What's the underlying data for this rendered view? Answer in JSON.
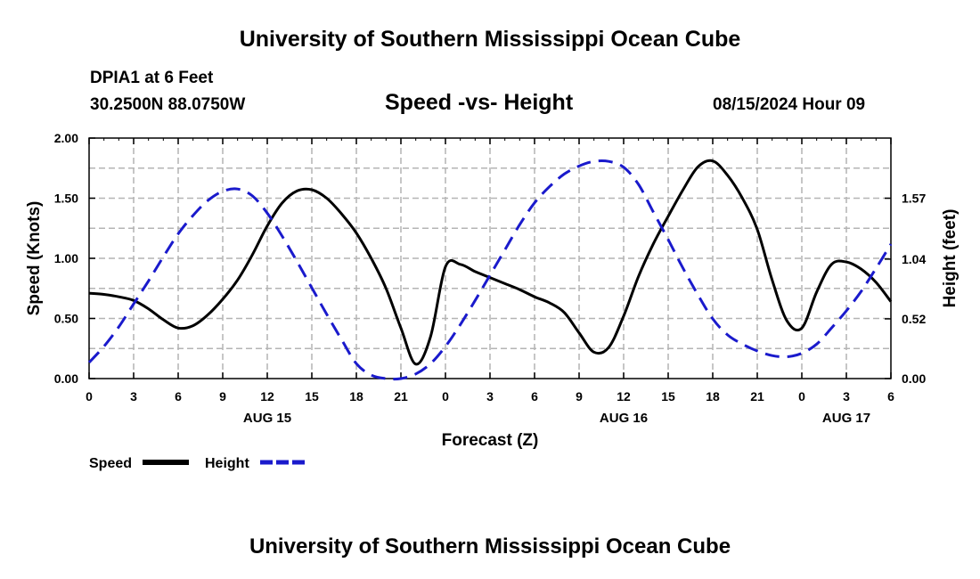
{
  "header": {
    "title": "University of Southern Mississippi Ocean Cube",
    "station": "DPIA1 at 6 Feet",
    "coords": "30.2500N  88.0750W",
    "subtitle": "Speed -vs- Height",
    "datetime": "08/15/2024 Hour 09",
    "footer_title": "University of Southern Mississippi Ocean Cube"
  },
  "colors": {
    "speed": "#000000",
    "height": "#1a1acc",
    "grid": "#b4b4b4"
  },
  "chart_data": {
    "type": "line",
    "title": "Speed -vs- Height",
    "xlabel": "Forecast (Z)",
    "ylabel": "Speed (Knots)",
    "y2label": "Height (feet)",
    "x_hours_range": [
      0,
      54
    ],
    "x_tick_labels": [
      "0",
      "3",
      "6",
      "9",
      "12",
      "15",
      "18",
      "21",
      "0",
      "3",
      "6",
      "9",
      "12",
      "15",
      "18",
      "21",
      "0",
      "3",
      "6"
    ],
    "x_day_labels": [
      {
        "hour": 12,
        "label": "AUG 15"
      },
      {
        "hour": 36,
        "label": "AUG 16"
      },
      {
        "hour": 51,
        "label": "AUG 17"
      }
    ],
    "ylim": [
      0,
      2
    ],
    "y_ticks": [
      "0.00",
      "0.50",
      "1.00",
      "1.50",
      "2.00"
    ],
    "y2lim": [
      0,
      2.0935
    ],
    "y2_ticks": [
      {
        "value": 0.0,
        "label": "0.00"
      },
      {
        "value": 0.52,
        "label": "0.52"
      },
      {
        "value": 1.04,
        "label": "1.04"
      },
      {
        "value": 1.57,
        "label": "1.57"
      }
    ],
    "grid": true,
    "legend_position": "bottom-left",
    "series": [
      {
        "name": "Speed",
        "axis": "left",
        "style": "solid",
        "x": [
          0,
          1,
          2,
          3,
          4,
          5,
          6,
          7,
          8,
          9,
          10,
          11,
          12,
          13,
          14,
          15,
          16,
          17,
          18,
          19,
          20,
          21,
          22,
          23,
          24,
          25,
          26,
          27,
          28,
          29,
          30,
          31,
          32,
          33,
          34,
          35,
          36,
          37,
          38,
          39,
          40,
          41,
          42,
          43,
          44,
          45,
          46,
          47,
          48,
          49,
          50,
          51,
          52,
          53,
          54
        ],
        "values": [
          0.71,
          0.7,
          0.68,
          0.65,
          0.58,
          0.49,
          0.42,
          0.44,
          0.53,
          0.66,
          0.82,
          1.03,
          1.27,
          1.46,
          1.56,
          1.57,
          1.5,
          1.37,
          1.21,
          1.0,
          0.75,
          0.42,
          0.12,
          0.35,
          0.93,
          0.95,
          0.89,
          0.84,
          0.79,
          0.74,
          0.68,
          0.63,
          0.55,
          0.38,
          0.22,
          0.26,
          0.52,
          0.85,
          1.12,
          1.35,
          1.57,
          1.76,
          1.81,
          1.69,
          1.5,
          1.24,
          0.82,
          0.48,
          0.42,
          0.72,
          0.95,
          0.97,
          0.91,
          0.8,
          0.64
        ]
      },
      {
        "name": "Height",
        "axis": "right",
        "style": "dashed",
        "x": [
          0,
          1,
          2,
          3,
          4,
          5,
          6,
          7,
          8,
          9,
          10,
          11,
          12,
          13,
          14,
          15,
          16,
          17,
          18,
          19,
          20,
          21,
          22,
          23,
          24,
          25,
          26,
          27,
          28,
          29,
          30,
          31,
          32,
          33,
          34,
          35,
          36,
          37,
          38,
          39,
          40,
          41,
          42,
          43,
          44,
          45,
          46,
          47,
          48,
          49,
          50,
          51,
          52,
          53,
          54
        ],
        "values": [
          0.14,
          0.28,
          0.45,
          0.65,
          0.85,
          1.06,
          1.26,
          1.42,
          1.55,
          1.63,
          1.65,
          1.59,
          1.44,
          1.24,
          1.02,
          0.79,
          0.56,
          0.34,
          0.13,
          0.03,
          0.0,
          0.0,
          0.04,
          0.13,
          0.28,
          0.47,
          0.68,
          0.9,
          1.12,
          1.34,
          1.53,
          1.67,
          1.78,
          1.85,
          1.89,
          1.89,
          1.84,
          1.69,
          1.45,
          1.21,
          0.96,
          0.73,
          0.52,
          0.38,
          0.3,
          0.24,
          0.2,
          0.19,
          0.22,
          0.3,
          0.44,
          0.59,
          0.76,
          0.96,
          1.17
        ]
      }
    ]
  }
}
